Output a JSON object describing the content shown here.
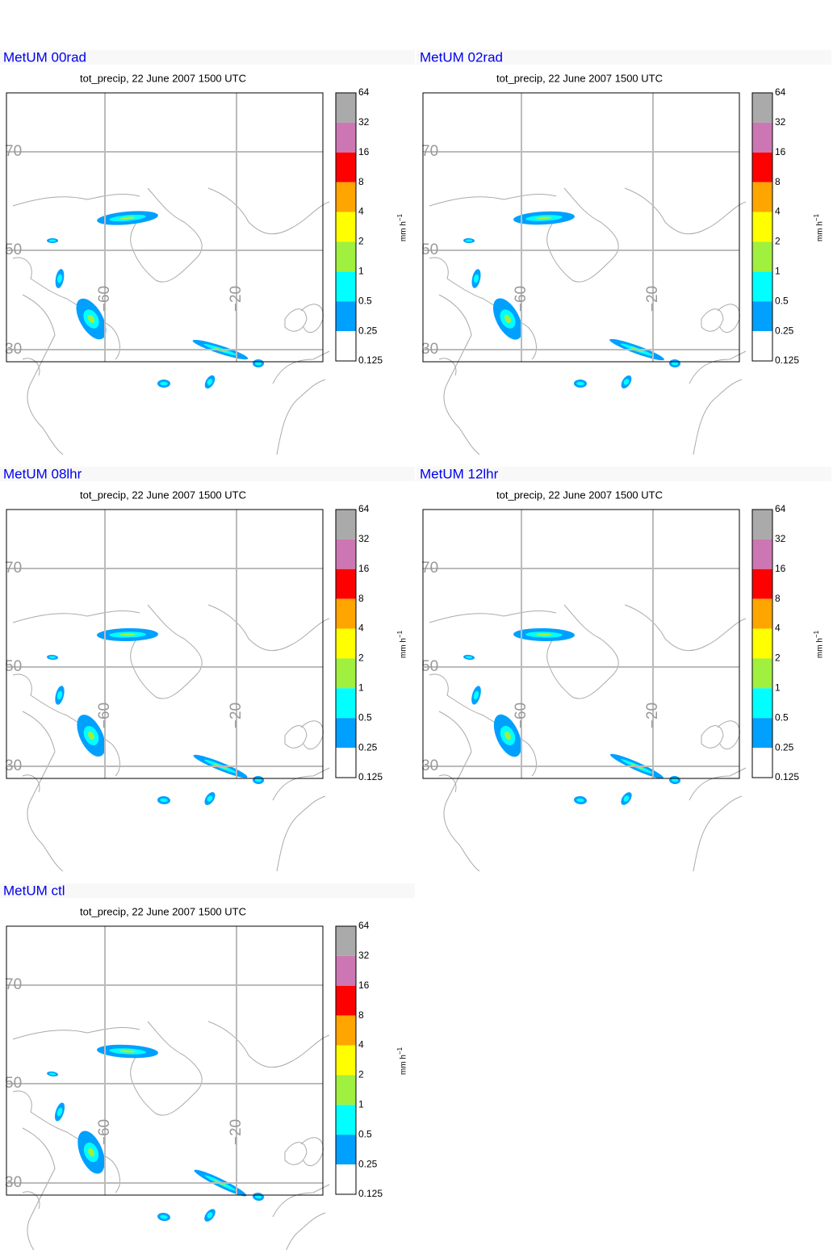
{
  "panels": [
    {
      "title": "MetUM 00rad",
      "subtitle": "tot_precip, 22 June 2007 1500 UTC"
    },
    {
      "title": "MetUM 02rad",
      "subtitle": "tot_precip, 22 June 2007 1500 UTC"
    },
    {
      "title": "MetUM 08lhr",
      "subtitle": "tot_precip, 22 June 2007 1500 UTC"
    },
    {
      "title": "MetUM 12lhr",
      "subtitle": "tot_precip, 22 June 2007 1500 UTC"
    },
    {
      "title": "MetUM ctl",
      "subtitle": "tot_precip, 22 June 2007 1500 UTC"
    }
  ],
  "map": {
    "lat_labels": [
      "70",
      "50",
      "30"
    ],
    "lon_labels": [
      "−60",
      "−20"
    ]
  },
  "colorbar": {
    "labels": [
      "64",
      "32",
      "16",
      "8",
      "4",
      "2",
      "1",
      "0.5",
      "0.25",
      "0.125"
    ],
    "colors": [
      "#aaaaaa",
      "#cc77b3",
      "#ff0000",
      "#ffa500",
      "#ffff00",
      "#a0f040",
      "#00ffff",
      "#00a0ff",
      "#ffffff"
    ],
    "unit": "mm h",
    "unit_superscript": "−1"
  }
}
